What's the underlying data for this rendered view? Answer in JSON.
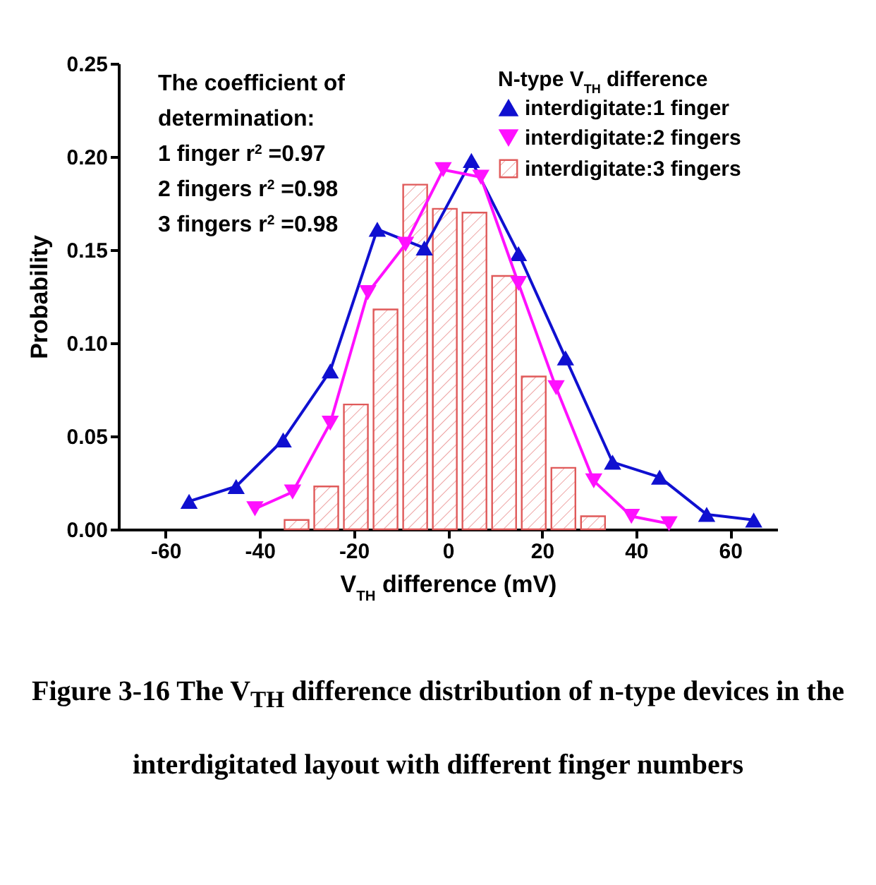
{
  "chart_data": {
    "type": "line",
    "xlabel": "V$_{TH}$ difference (mV)",
    "ylabel": "Probability",
    "legend_title": "N-type V$_{TH}$ difference",
    "xlim": [
      -70,
      70
    ],
    "xticks": [
      -60,
      -40,
      -20,
      0,
      20,
      40,
      60
    ],
    "ylim": [
      0,
      0.25
    ],
    "yticks": [
      {
        "value": 0,
        "label": "0.00"
      },
      {
        "value": 0.05,
        "label": "0.05"
      },
      {
        "value": 0.1,
        "label": "0.10"
      },
      {
        "value": 0.15,
        "label": "0.15"
      },
      {
        "value": 0.2,
        "label": "0.20"
      },
      {
        "value": 0.25,
        "label": "0.25"
      }
    ],
    "legend": "top right",
    "series": [
      {
        "name": "interdigitate:1 finger",
        "color": "#1010d0",
        "marker": "triangle",
        "x": [
          -55,
          -45,
          -35,
          -25,
          -15,
          -5,
          5,
          15,
          25,
          35,
          45,
          55,
          65
        ],
        "values": [
          0.015,
          0.023,
          0.048,
          0.085,
          0.161,
          0.151,
          0.198,
          0.148,
          0.092,
          0.036,
          0.028,
          0.008,
          0.005
        ]
      },
      {
        "name": "interdigitate:2 fingers",
        "color": "#ff10ff",
        "marker": "triangle-down",
        "x": [
          -41,
          -33,
          -25,
          -17,
          -9,
          -1,
          7,
          15,
          23,
          31,
          39,
          47
        ],
        "values": [
          0.011,
          0.02,
          0.057,
          0.127,
          0.153,
          0.193,
          0.189,
          0.132,
          0.076,
          0.026,
          0.007,
          0.003
        ]
      },
      {
        "name": "interdigitate:3 fingers",
        "type": "histogram",
        "color": "#e05a5a",
        "bins": [
          -35.3,
          -29,
          -22.7,
          -16.4,
          -10.1,
          -3.8,
          2.5,
          8.8,
          15.1,
          21.4,
          27.7,
          34
        ],
        "values": [
          0.005,
          0.023,
          0.067,
          0.118,
          0.185,
          0.172,
          0.17,
          0.136,
          0.082,
          0.033,
          0.007
        ]
      }
    ],
    "annotations": [
      "The coefficient of",
      "determination:",
      "1 finger   r$^{2}$ =0.97",
      "2 fingers r$^{2}$ =0.98",
      "3 fingers r$^{2}$ =0.98",
      "Figure 3-16 The V$_{TH}$ difference distribution of n-type devices in the interdigitated layout with different finger numbers"
    ]
  }
}
